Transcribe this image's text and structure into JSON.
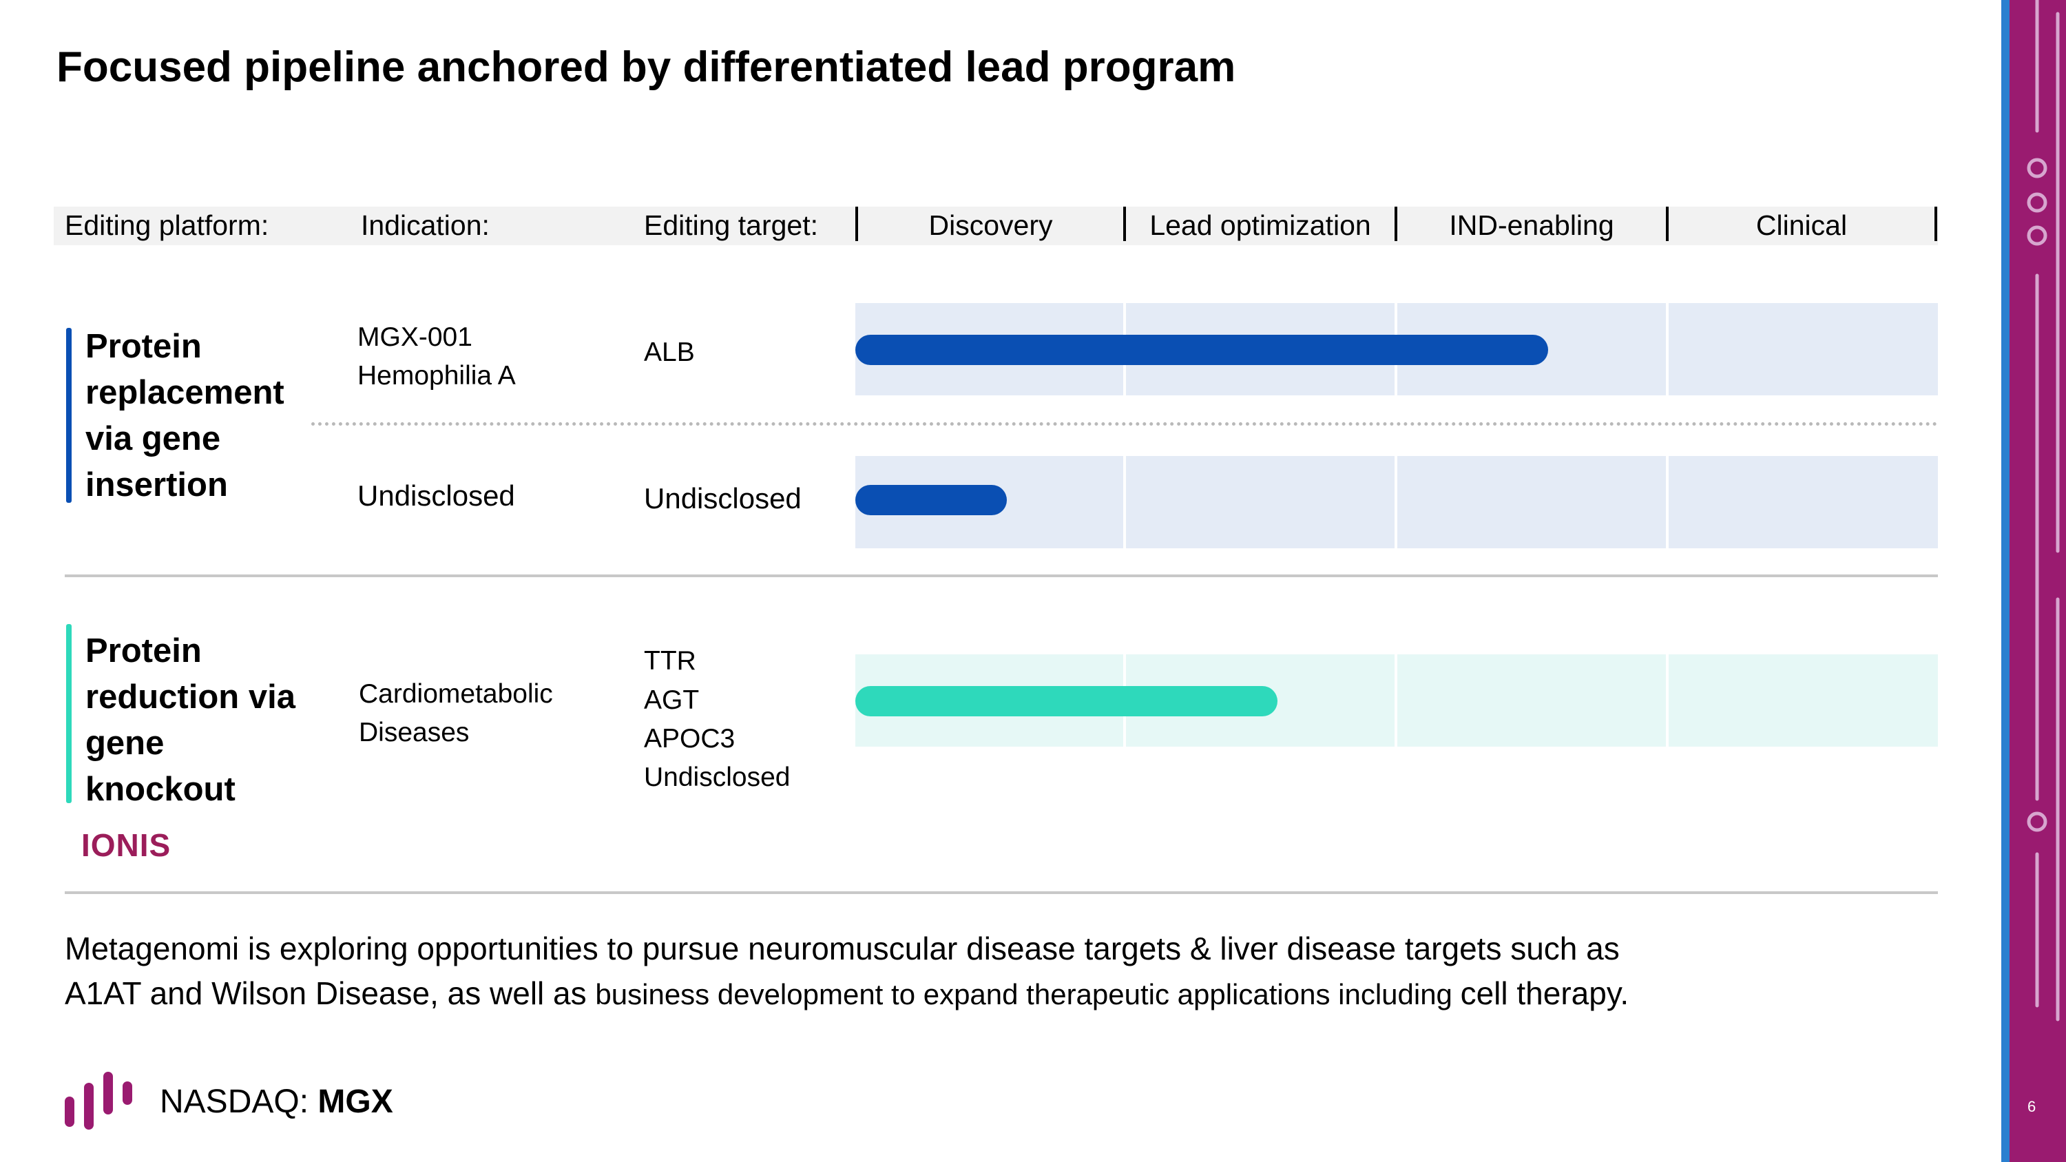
{
  "title": "Focused pipeline anchored by differentiated lead program",
  "header": {
    "platform_label": "Editing platform:",
    "indication_label": "Indication:",
    "target_label": "Editing target:",
    "stages": [
      "Discovery",
      "Lead optimization",
      "IND-enabling",
      "Clinical"
    ]
  },
  "platforms": [
    {
      "name": "Protein replacement via gene insertion",
      "color": "#0a4fb3",
      "programs": [
        {
          "indication": "MGX-001 Hemophilia A",
          "indication_lines": [
            "MGX-001",
            "Hemophilia A"
          ],
          "target_lines": [
            "ALB"
          ],
          "progress": 0.64
        },
        {
          "indication_lines": [
            "Undisclosed"
          ],
          "target_lines": [
            "Undisclosed"
          ],
          "progress": 0.14
        }
      ]
    },
    {
      "name": "Protein reduction via gene knockout",
      "color": "#2ed9bb",
      "partner": "IONIS",
      "programs": [
        {
          "indication_lines": [
            "Cardiometabolic",
            "Diseases"
          ],
          "target_lines": [
            "TTR",
            "AGT",
            "APOC3",
            "Undisclosed"
          ],
          "progress": 0.39
        }
      ]
    }
  ],
  "footer": {
    "line1": "Metagenomi is exploring opportunities to pursue neuromuscular disease targets & liver disease targets such as",
    "line2_a": "A1AT and Wilson Disease, as well as ",
    "line2_b": "business development to expand therapeutic applications including ",
    "line2_c": "cell therapy."
  },
  "ticker": {
    "exchange": "NASDAQ: ",
    "symbol": "MGX"
  },
  "page_number": "6",
  "colors": {
    "brand_magenta": "#9a1b70",
    "blue_bar": "#0a4fb3",
    "teal_bar": "#2ed9bb"
  }
}
